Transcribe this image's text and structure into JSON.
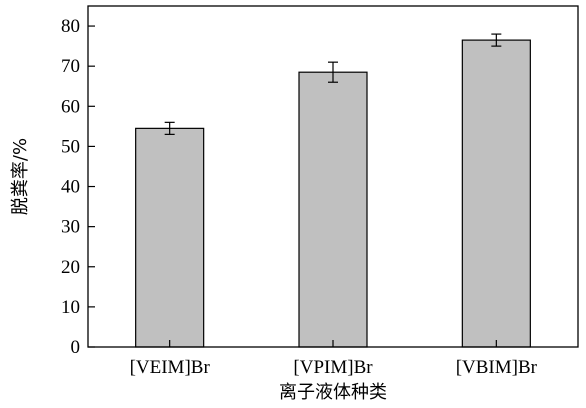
{
  "chart_data": {
    "type": "bar",
    "title": "",
    "xlabel": "离子液体种类",
    "ylabel": "脱粪率/%",
    "categories": [
      "[VEIM]Br",
      "[VPIM]Br",
      "[VBIM]Br"
    ],
    "values": [
      54.5,
      68.5,
      76.5
    ],
    "errors": [
      1.5,
      2.5,
      1.5
    ],
    "ylim": [
      0,
      85
    ],
    "yticks": [
      0,
      10,
      20,
      30,
      40,
      50,
      60,
      70,
      80
    ],
    "grid": false,
    "legend": "none",
    "bar_color": "#c0c0c0"
  }
}
